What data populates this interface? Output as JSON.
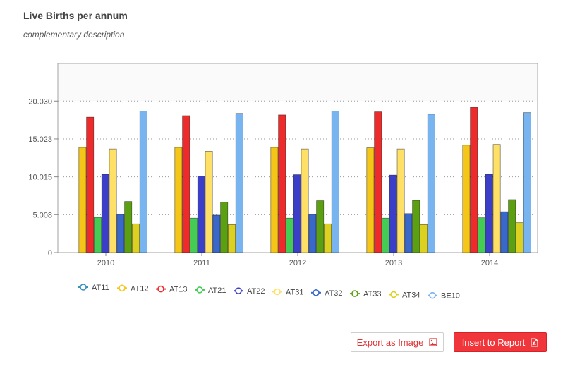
{
  "header": {
    "title": "Live Births per annum",
    "subtitle": "complementary description"
  },
  "buttons": {
    "export_label": "Export as Image",
    "insert_label": "Insert to Report"
  },
  "chart_data": {
    "type": "bar",
    "title": "Live Births per annum",
    "subtitle": "complementary description",
    "xlabel": "",
    "ylabel": "",
    "ylim": [
      0,
      25000
    ],
    "yticks": [
      0,
      5008,
      10015,
      15023,
      20030
    ],
    "ytick_labels": [
      "0",
      "5.008",
      "10.015",
      "15.023",
      "20.030"
    ],
    "categories": [
      "2010",
      "2011",
      "2012",
      "2013",
      "2014"
    ],
    "legend_position": "bottom",
    "series": [
      {
        "name": "AT11",
        "color": "#3a8fc0",
        "values": [
          null,
          null,
          null,
          null,
          null
        ]
      },
      {
        "name": "AT12",
        "color": "#f5c518",
        "values": [
          13900,
          13900,
          13900,
          13850,
          14200
        ]
      },
      {
        "name": "AT13",
        "color": "#ee2a2a",
        "values": [
          17900,
          18100,
          18200,
          18600,
          19200
        ]
      },
      {
        "name": "AT21",
        "color": "#44cc55",
        "values": [
          4650,
          4550,
          4550,
          4550,
          4600
        ]
      },
      {
        "name": "AT22",
        "color": "#3b3fc8",
        "values": [
          10350,
          10100,
          10300,
          10250,
          10350
        ]
      },
      {
        "name": "AT31",
        "color": "#ffe066",
        "values": [
          13700,
          13400,
          13700,
          13700,
          14300
        ]
      },
      {
        "name": "AT32",
        "color": "#3a68c8",
        "values": [
          5050,
          4950,
          5050,
          5150,
          5400
        ]
      },
      {
        "name": "AT33",
        "color": "#5aa010",
        "values": [
          6750,
          6650,
          6850,
          6900,
          7000
        ]
      },
      {
        "name": "AT34",
        "color": "#dcd020",
        "values": [
          3800,
          3700,
          3800,
          3700,
          3950
        ]
      },
      {
        "name": "BE10",
        "color": "#78b4f0",
        "values": [
          18700,
          18400,
          18700,
          18300,
          18500
        ]
      }
    ]
  }
}
